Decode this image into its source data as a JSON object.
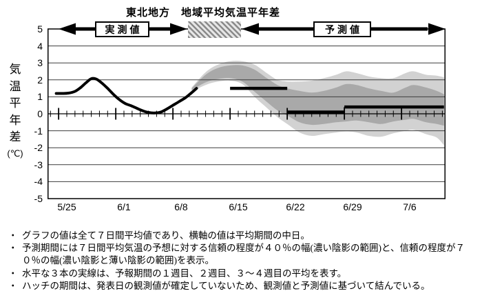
{
  "title": "東北地方　地域平均気温平年差",
  "header": {
    "observed_label": "実測値",
    "forecast_label": "予測値"
  },
  "y_axis": {
    "title_chars": [
      "気",
      "温",
      "平",
      "年",
      "差"
    ],
    "unit": "(℃)",
    "ticks": [
      5,
      4,
      3,
      2,
      1,
      0,
      -1,
      -2,
      -3,
      -4,
      -5
    ]
  },
  "notes_bullet": "・",
  "notes": [
    "グラフの値は全て７日間平均値であり、横軸の値は平均期間の中日。",
    "予測期間には７日間平均気温の予想に対する信頼の程度が４０％の幅(濃い陰影の範囲)と、信頼の程度が７０％の幅(濃い陰影と薄い陰影の範囲)を表示。",
    "水平な３本の実線は、予報期間の１週目、２週目、３～４週目の平均を表す。",
    "ハッチの期間は、発表日の観測値が確定していないため、観測値と予測値に基づいて結んでいる。"
  ],
  "chart_data": {
    "type": "line",
    "title": "東北地方　地域平均気温平年差",
    "ylabel": "気温平年差(℃)",
    "ylim": [
      -5,
      5
    ],
    "grid": true,
    "y_ticks": [
      5,
      4,
      3,
      2,
      1,
      0,
      -1,
      -2,
      -3,
      -4,
      -5
    ],
    "x_tick_labels": [
      "5/25",
      "6/1",
      "6/8",
      "6/15",
      "6/22",
      "6/29",
      "7/6"
    ],
    "x_tick_days": [
      0,
      7,
      14,
      21,
      28,
      35,
      42
    ],
    "x_big_tick_days": [
      -1,
      6,
      13,
      20,
      27,
      34,
      41
    ],
    "x_day_range": [
      -2,
      46
    ],
    "hatch_period_days": [
      14.8,
      21.3
    ],
    "observed_series": {
      "name": "実測値",
      "points": [
        [
          -1.3,
          1.2
        ],
        [
          -0.6,
          1.2
        ],
        [
          0.2,
          1.22
        ],
        [
          1.0,
          1.32
        ],
        [
          1.7,
          1.55
        ],
        [
          2.4,
          1.85
        ],
        [
          3.0,
          2.07
        ],
        [
          3.6,
          2.05
        ],
        [
          4.2,
          1.85
        ],
        [
          5.0,
          1.5
        ],
        [
          5.7,
          1.15
        ],
        [
          6.4,
          0.85
        ],
        [
          7.1,
          0.62
        ],
        [
          7.9,
          0.47
        ],
        [
          8.6,
          0.32
        ],
        [
          9.3,
          0.18
        ],
        [
          10.0,
          0.08
        ],
        [
          10.8,
          0.05
        ],
        [
          11.5,
          0.1
        ],
        [
          12.2,
          0.27
        ],
        [
          13.0,
          0.5
        ],
        [
          13.8,
          0.73
        ],
        [
          14.6,
          0.97
        ],
        [
          15.3,
          1.25
        ],
        [
          15.9,
          1.5
        ]
      ]
    },
    "confidence_band_40": [
      [
        15.3,
        1.4,
        1.5
      ],
      [
        17,
        1.85,
        2.3
      ],
      [
        18.5,
        2.05,
        2.7
      ],
      [
        20,
        2.1,
        2.85
      ],
      [
        21.5,
        1.9,
        2.85
      ],
      [
        23,
        1.3,
        2.6
      ],
      [
        24.5,
        0.7,
        2.1
      ],
      [
        25.8,
        0.2,
        1.7
      ],
      [
        27,
        -0.1,
        1.5
      ],
      [
        28.5,
        -0.5,
        1.35
      ],
      [
        30,
        -0.65,
        1.25
      ],
      [
        31.5,
        -0.6,
        1.35
      ],
      [
        33,
        -0.5,
        1.55
      ],
      [
        34.2,
        -0.45,
        1.75
      ],
      [
        35.5,
        -0.4,
        1.7
      ],
      [
        37,
        -0.5,
        1.5
      ],
      [
        38.5,
        -0.6,
        1.35
      ],
      [
        40,
        -0.45,
        1.25
      ],
      [
        41.5,
        -0.35,
        1.55
      ],
      [
        42.5,
        -0.3,
        1.7
      ],
      [
        44,
        -0.5,
        1.55
      ],
      [
        45.3,
        -0.6,
        1.35
      ],
      [
        46.2,
        -0.7,
        1.15
      ]
    ],
    "confidence_band_70": [
      [
        15.3,
        1.3,
        1.55
      ],
      [
        17,
        1.7,
        2.45
      ],
      [
        18.5,
        1.9,
        2.9
      ],
      [
        20,
        1.95,
        3.1
      ],
      [
        21.5,
        1.75,
        3.1
      ],
      [
        23,
        1.0,
        2.9
      ],
      [
        24.5,
        0.35,
        2.4
      ],
      [
        25.8,
        -0.2,
        2.0
      ],
      [
        27,
        -0.6,
        1.9
      ],
      [
        28.5,
        -1.1,
        1.9
      ],
      [
        30,
        -1.3,
        1.95
      ],
      [
        31.5,
        -1.2,
        2.1
      ],
      [
        33,
        -1.1,
        2.3
      ],
      [
        34.2,
        -1.05,
        2.5
      ],
      [
        35.5,
        -1.1,
        2.4
      ],
      [
        37,
        -1.3,
        2.2
      ],
      [
        38.5,
        -1.35,
        2.1
      ],
      [
        40,
        -1.15,
        2.1
      ],
      [
        41.5,
        -1.0,
        2.4
      ],
      [
        42.5,
        -0.95,
        2.5
      ],
      [
        44,
        -1.2,
        2.3
      ],
      [
        45.3,
        -1.4,
        2.25
      ],
      [
        46.2,
        -1.85,
        2.15
      ]
    ],
    "forecast_week_means": [
      {
        "period": "１週目",
        "from_day": 20,
        "to_day": 27,
        "value": 1.5
      },
      {
        "period": "２週目",
        "from_day": 27,
        "to_day": 34,
        "value": 0.1
      },
      {
        "period": "３～４週目",
        "from_day": 34,
        "to_day": 46.2,
        "value": 0.4
      }
    ],
    "colors": {
      "band40": "#a9a9a9",
      "band70": "#d2d2d2",
      "line": "#000000",
      "grid": "#3c3c3c"
    }
  }
}
